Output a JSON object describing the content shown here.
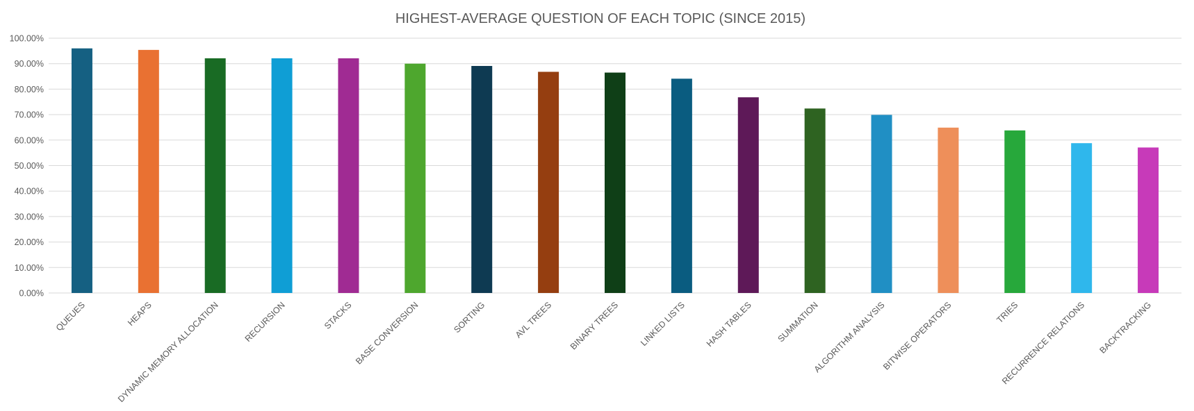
{
  "chart_data": {
    "type": "bar",
    "title": "HIGHEST-AVERAGE QUESTION OF EACH TOPIC (SINCE 2015)",
    "xlabel": "",
    "ylabel": "",
    "ylim": [
      0,
      100
    ],
    "yticks": [
      "0.00%",
      "10.00%",
      "20.00%",
      "30.00%",
      "40.00%",
      "50.00%",
      "60.00%",
      "70.00%",
      "80.00%",
      "90.00%",
      "100.00%"
    ],
    "grid": true,
    "legend": "none",
    "categories": [
      "QUEUES",
      "HEAPS",
      "DYNAMIC MEMORY ALLOCATION",
      "RECURSION",
      "STACKS",
      "BASE CONVERSION",
      "SORTING",
      "AVL TREES",
      "BINARY TREES",
      "LINKED LISTS",
      "HASH TABLES",
      "SUMMATION",
      "ALGORITHM ANALYSIS",
      "BITWISE OPERATORS",
      "TRIES",
      "RECURRENCE RELATIONS",
      "BACKTRACKING"
    ],
    "values": [
      96.0,
      95.4,
      92.1,
      92.1,
      92.1,
      90.0,
      89.1,
      86.8,
      86.5,
      84.1,
      76.8,
      72.4,
      69.9,
      64.9,
      63.8,
      58.8,
      57.1
    ],
    "colors": [
      "#156082",
      "#e97132",
      "#196b24",
      "#0f9ed5",
      "#a02b93",
      "#4ea72e",
      "#0e3a52",
      "#953e10",
      "#0f3f17",
      "#0a5c80",
      "#5e1958",
      "#2e6321",
      "#208fc4",
      "#ee8f5a",
      "#27a83b",
      "#2fb7ec",
      "#c73ab9"
    ]
  }
}
